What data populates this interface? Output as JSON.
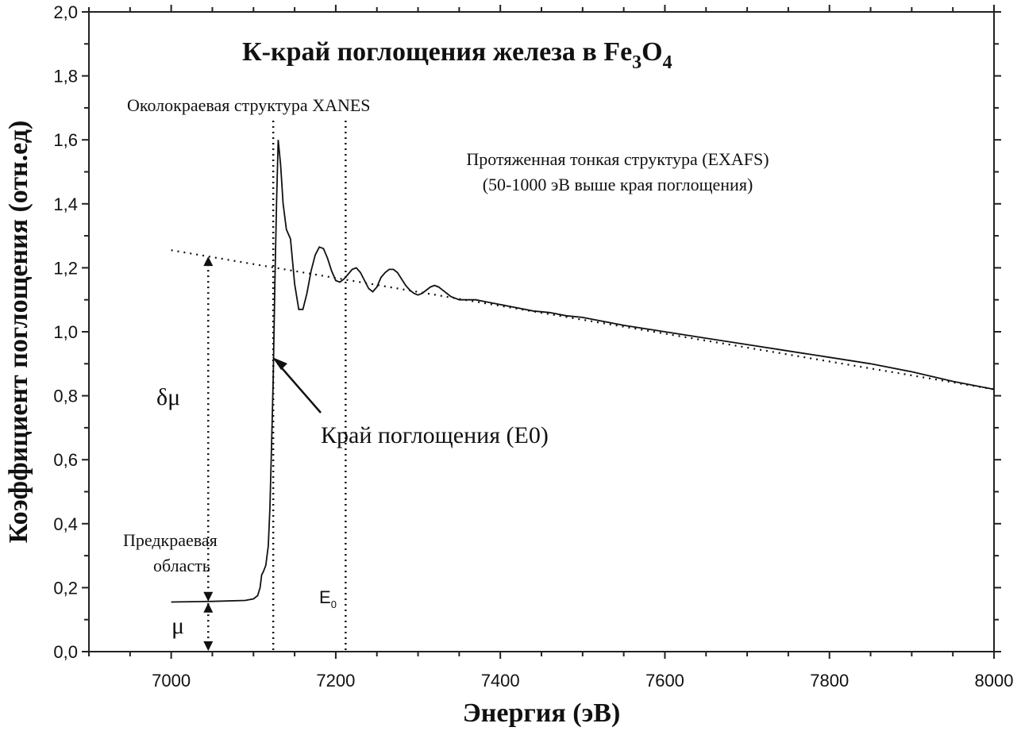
{
  "chart_data": {
    "type": "line",
    "title": "К-край поглощения железа в Fe",
    "title_sub1": "3",
    "title_mid": "O",
    "title_sub2": "4",
    "xlabel": "Энергия (эВ)",
    "ylabel": "Коэффициент поглощения (отн.ед)",
    "xlim": [
      6900,
      8000
    ],
    "ylim": [
      0.0,
      2.0
    ],
    "x_ticks": [
      7000,
      7200,
      7400,
      7600,
      7800,
      8000
    ],
    "x_tick_labels": [
      "7000",
      "7200",
      "7400",
      "7600",
      "7800",
      "8000"
    ],
    "y_ticks": [
      0.0,
      0.2,
      0.4,
      0.6,
      0.8,
      1.0,
      1.2,
      1.4,
      1.6,
      1.8,
      2.0
    ],
    "y_tick_labels": [
      "0,0",
      "0,2",
      "0,4",
      "0,6",
      "0,8",
      "1,0",
      "1,2",
      "1,4",
      "1,6",
      "1,8",
      "2,0"
    ],
    "series": [
      {
        "x": [
          7000,
          7050,
          7090,
          7100,
          7105,
          7108,
          7110,
          7112,
          7115,
          7118,
          7120,
          7122,
          7124,
          7126,
          7128,
          7130,
          7133,
          7136,
          7140,
          7145,
          7150,
          7155,
          7160,
          7165,
          7170,
          7175,
          7180,
          7185,
          7190,
          7195,
          7200,
          7205,
          7210,
          7215,
          7220,
          7225,
          7230,
          7235,
          7240,
          7245,
          7250,
          7255,
          7260,
          7265,
          7270,
          7275,
          7280,
          7285,
          7290,
          7295,
          7300,
          7305,
          7310,
          7315,
          7320,
          7325,
          7330,
          7335,
          7340,
          7345,
          7350,
          7360,
          7370,
          7380,
          7390,
          7400,
          7420,
          7440,
          7460,
          7480,
          7500,
          7550,
          7600,
          7650,
          7700,
          7750,
          7800,
          7850,
          7900,
          7950,
          8000
        ],
        "y": [
          0.155,
          0.157,
          0.16,
          0.165,
          0.175,
          0.2,
          0.24,
          0.25,
          0.27,
          0.33,
          0.45,
          0.65,
          0.85,
          1.15,
          1.4,
          1.6,
          1.52,
          1.4,
          1.32,
          1.29,
          1.15,
          1.07,
          1.07,
          1.12,
          1.19,
          1.24,
          1.265,
          1.26,
          1.23,
          1.19,
          1.16,
          1.155,
          1.165,
          1.18,
          1.195,
          1.2,
          1.185,
          1.16,
          1.135,
          1.125,
          1.14,
          1.17,
          1.185,
          1.195,
          1.195,
          1.185,
          1.165,
          1.145,
          1.13,
          1.12,
          1.115,
          1.12,
          1.13,
          1.14,
          1.145,
          1.14,
          1.13,
          1.12,
          1.11,
          1.105,
          1.1,
          1.1,
          1.1,
          1.095,
          1.09,
          1.085,
          1.075,
          1.065,
          1.06,
          1.05,
          1.045,
          1.02,
          1.0,
          0.98,
          0.96,
          0.94,
          0.92,
          0.9,
          0.875,
          0.845,
          0.82
        ]
      },
      {
        "x": [
          7000,
          8000
        ],
        "y": [
          1.255,
          0.82
        ]
      }
    ],
    "annotations": {
      "xanes": "Околокраевая структура XANES",
      "exafs_line1": "Протяженная тонкая структура (EXAFS)",
      "exafs_line2": "(50-1000 эВ выше края поглощения)",
      "edge": "Край поглощения (E0)",
      "delta_mu": "δμ",
      "mu": "μ",
      "preedge_line1": "Предкраевая",
      "preedge_line2": "область",
      "e0_main": "E",
      "e0_sub": "0"
    },
    "grid": false,
    "legend": "none"
  }
}
